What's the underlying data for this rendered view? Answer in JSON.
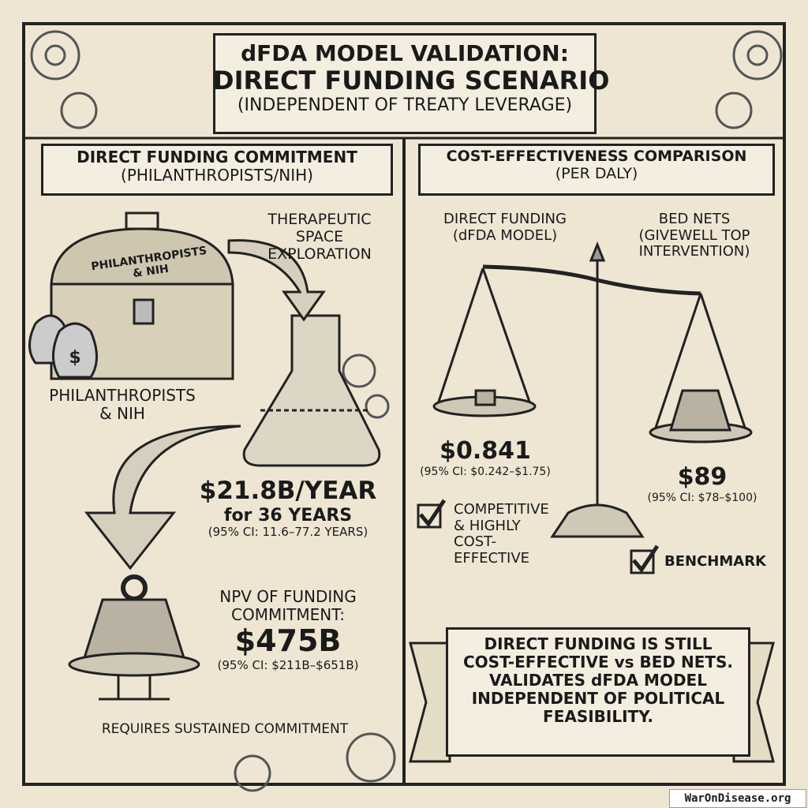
{
  "header": {
    "title_lines": [
      "dFDA MODEL VALIDATION:",
      "DIRECT FUNDING SCENARIO",
      "(INDEPENDENT OF TREATY LEVERAGE)"
    ]
  },
  "left_panel": {
    "heading": [
      "DIRECT FUNDING COMMITMENT",
      "(PHILANTHROPISTS/NIH)"
    ],
    "chest_label": [
      "PHILANTHROPISTS",
      "& NIH"
    ],
    "arrow_label": [
      "THERAPEUTIC",
      "SPACE",
      "EXPLORATION"
    ],
    "source_label": [
      "PHILANTHROPISTS",
      "& NIH"
    ],
    "annual_funding": "$21.8B/YEAR",
    "duration": "for 36 YEARS",
    "duration_ci": "(95% CI: 11.6–77.2 YEARS)",
    "npv_label": [
      "NPV OF FUNDING",
      "COMMITMENT:"
    ],
    "npv_value": "$475B",
    "npv_ci": "(95% CI: $211B–$651B)",
    "footer": "REQUIRES SUSTAINED COMMITMENT"
  },
  "right_panel": {
    "heading": [
      "COST-EFFECTIVENESS COMPARISON",
      "(PER DALY)"
    ],
    "left_option": {
      "name": [
        "DIRECT FUNDING",
        "(dFDA MODEL)"
      ],
      "value": "$0.841",
      "ci": "(95% CI: $0.242–$1.75)",
      "verdict": [
        "COMPETITIVE",
        "& HIGHLY",
        "COST-",
        "EFFECTIVE"
      ]
    },
    "right_option": {
      "name": [
        "BED NETS",
        "(GIVEWELL TOP",
        "INTERVENTION)"
      ],
      "value": "$89",
      "ci": "(95% CI: $78–$100)",
      "verdict": "BENCHMARK"
    },
    "conclusion": [
      "DIRECT FUNDING IS STILL",
      "COST-EFFECTIVE vs BED NETS.",
      "VALIDATES dFDA MODEL",
      "INDEPENDENT OF POLITICAL",
      "FEASIBILITY."
    ]
  },
  "watermark": "WarOnDisease.org"
}
